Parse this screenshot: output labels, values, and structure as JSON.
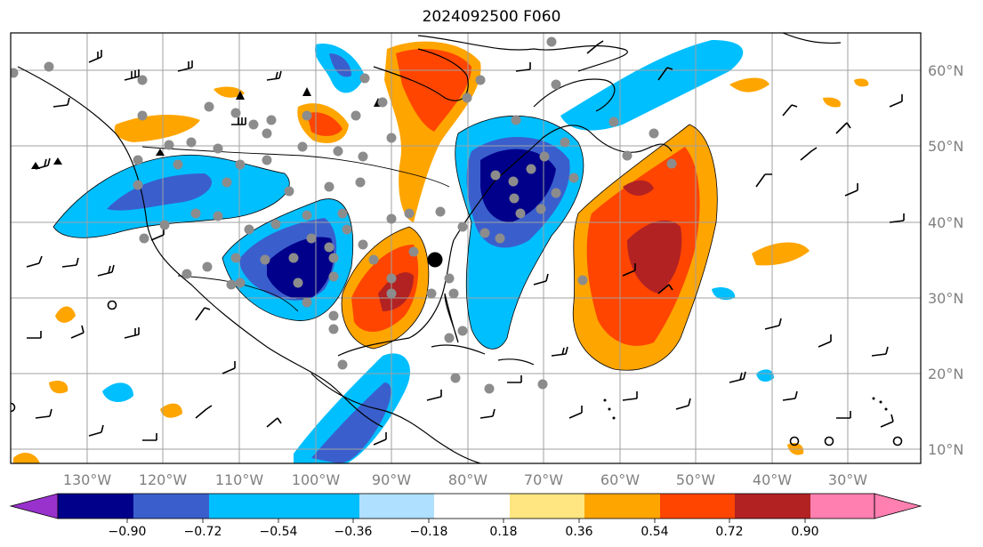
{
  "title": "2024092500 F060",
  "lat_labels": [
    "60°N",
    "50°N",
    "40°N",
    "30°N",
    "20°N",
    "10°N"
  ],
  "lon_labels": [
    "130°W",
    "120°W",
    "110°W",
    "100°W",
    "90°W",
    "80°W",
    "70°W",
    "60°W",
    "50°W",
    "40°W",
    "30°W"
  ],
  "colorbar": {
    "colors": [
      "#9932cc",
      "#00008b",
      "#3a5fcd",
      "#00bfff",
      "#b0e0ff",
      "#ffffff",
      "#ffe680",
      "#ffa500",
      "#ff4500",
      "#b22222",
      "#ff7fb0"
    ],
    "ticks": [
      "−0.90",
      "−0.72",
      "−0.54",
      "−0.36",
      "−0.18",
      "0.18",
      "0.36",
      "0.54",
      "0.72",
      "0.90"
    ]
  },
  "map": {
    "lon_range": [
      -137,
      -18
    ],
    "lat_range": [
      7,
      65
    ],
    "marker": {
      "lon": -84.5,
      "lat": 35
    },
    "gridlines": true
  }
}
